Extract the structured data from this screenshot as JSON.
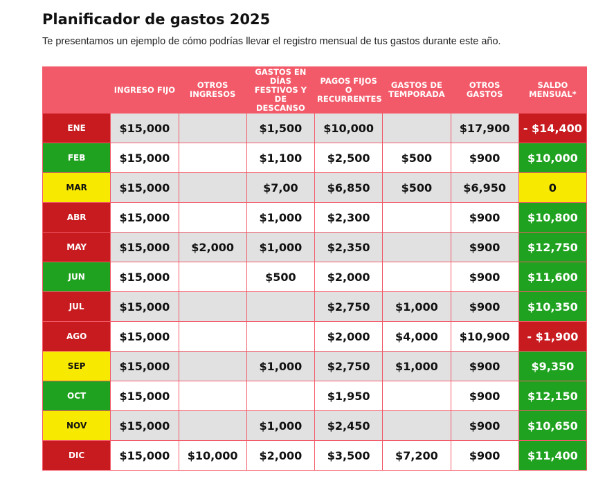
{
  "header": {
    "title": "Planificador de gastos 2025",
    "subtitle": "Te presentamos un ejemplo de cómo podrías llevar el registro mensual de tus gastos durante este año."
  },
  "table": {
    "header_color": "#f35a69",
    "alt_row_color": "#e1e1e1",
    "columns": [
      null,
      "INGRESO FIJO",
      "OTROS INGRESOS",
      "GASTOS EN DÍAS FESTIVOS Y DE DESCANSO",
      "PAGOS FIJOS O RECURRENTES",
      "GASTOS DE TEMPORADA",
      "OTROS GASTOS",
      "SALDO MENSUAL*"
    ],
    "rows": [
      {
        "month": "ENE",
        "month_color": "#c81b1f",
        "cells": [
          "$15,000",
          null,
          "$1,500",
          "$10,000",
          null,
          "$17,900"
        ],
        "saldo": "- $14,400",
        "saldo_color": "#c81b1f"
      },
      {
        "month": "FEB",
        "month_color": "#1fa21f",
        "cells": [
          "$15,000",
          null,
          "$1,100",
          "$2,500",
          "$500",
          "$900"
        ],
        "saldo": "$10,000",
        "saldo_color": "#1fa21f"
      },
      {
        "month": "MAR",
        "month_color": "#f7ea00",
        "cells": [
          "$15,000",
          null,
          "$7,00",
          "$6,850",
          "$500",
          "$6,950"
        ],
        "saldo": "0",
        "saldo_color": "#f7ea00"
      },
      {
        "month": "ABR",
        "month_color": "#c81b1f",
        "cells": [
          "$15,000",
          null,
          "$1,000",
          "$2,300",
          null,
          "$900"
        ],
        "saldo": "$10,800",
        "saldo_color": "#1fa21f"
      },
      {
        "month": "MAY",
        "month_color": "#c81b1f",
        "cells": [
          "$15,000",
          "$2,000",
          "$1,000",
          "$2,350",
          null,
          "$900"
        ],
        "saldo": "$12,750",
        "saldo_color": "#1fa21f"
      },
      {
        "month": "JUN",
        "month_color": "#1fa21f",
        "cells": [
          "$15,000",
          null,
          "$500",
          "$2,000",
          null,
          "$900"
        ],
        "saldo": "$11,600",
        "saldo_color": "#1fa21f"
      },
      {
        "month": "JUL",
        "month_color": "#c81b1f",
        "cells": [
          "$15,000",
          null,
          null,
          "$2,750",
          "$1,000",
          "$900"
        ],
        "saldo": "$10,350",
        "saldo_color": "#1fa21f"
      },
      {
        "month": "AGO",
        "month_color": "#c81b1f",
        "cells": [
          "$15,000",
          null,
          null,
          "$2,000",
          "$4,000",
          "$10,900"
        ],
        "saldo": "- $1,900",
        "saldo_color": "#c81b1f"
      },
      {
        "month": "SEP",
        "month_color": "#f7ea00",
        "cells": [
          "$15,000",
          null,
          "$1,000",
          "$2,750",
          "$1,000",
          "$900"
        ],
        "saldo": "$9,350",
        "saldo_color": "#1fa21f"
      },
      {
        "month": "OCT",
        "month_color": "#1fa21f",
        "cells": [
          "$15,000",
          null,
          null,
          "$1,950",
          null,
          "$900"
        ],
        "saldo": "$12,150",
        "saldo_color": "#1fa21f"
      },
      {
        "month": "NOV",
        "month_color": "#f7ea00",
        "cells": [
          "$15,000",
          null,
          "$1,000",
          "$2,450",
          null,
          "$900"
        ],
        "saldo": "$10,650",
        "saldo_color": "#1fa21f"
      },
      {
        "month": "DIC",
        "month_color": "#c81b1f",
        "cells": [
          "$15,000",
          "$10,000",
          "$2,000",
          "$3,500",
          "$7,200",
          "$900"
        ],
        "saldo": "$11,400",
        "saldo_color": "#1fa21f"
      }
    ]
  }
}
